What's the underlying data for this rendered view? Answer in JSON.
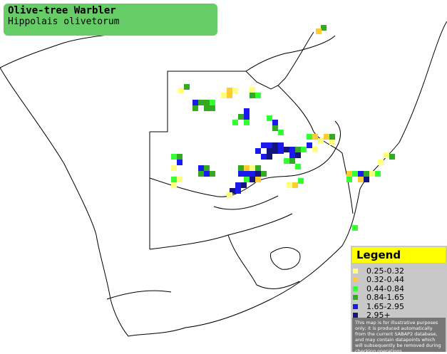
{
  "title_box": {
    "title": "Olive-tree Warbler",
    "subtitle": "Hippolais olivetorum"
  },
  "legend": {
    "heading": "Legend",
    "entries": [
      {
        "label": "0.25-0.32",
        "color": "#ffff80"
      },
      {
        "label": "0.32-0.44",
        "color": "#ffcc33"
      },
      {
        "label": "0.44-0.84",
        "color": "#33ff33"
      },
      {
        "label": "0.84-1.65",
        "color": "#33aa22"
      },
      {
        "label": "1.65-2.95",
        "color": "#1a1aee"
      },
      {
        "label": "2.95+",
        "color": "#141480"
      }
    ],
    "disclaimer": "This map is for illustrative purposes only; it is produced automatically from the current SABAP2 database, and may contain datapoints which will subsequently be removed during checking operations."
  }
}
